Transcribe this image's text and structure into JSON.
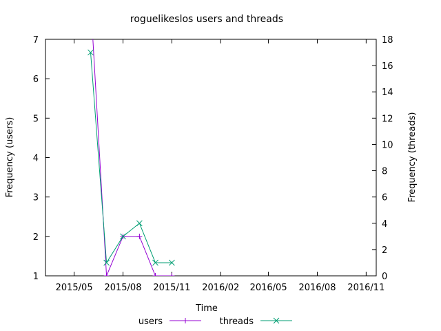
{
  "chart_data": {
    "type": "line",
    "title": "roguelikeslos users and threads",
    "xlabel": "Time",
    "ylabel_left": "Frequency (users)",
    "ylabel_right": "Frequency (threads)",
    "x_ticks": [
      "2015/05",
      "2015/08",
      "2015/11",
      "2016/02",
      "2016/05",
      "2016/08",
      "2016/11"
    ],
    "x_tick_dates": [
      "2015-05-01",
      "2015-08-01",
      "2015-11-01",
      "2016-02-01",
      "2016-05-01",
      "2016-08-01",
      "2016-11-01"
    ],
    "xlim": [
      "2015-03-08",
      "2016-11-20"
    ],
    "y_left_ticks": [
      1,
      2,
      3,
      4,
      5,
      6,
      7
    ],
    "y_left_lim": [
      1,
      7
    ],
    "y_right_ticks": [
      0,
      2,
      4,
      6,
      8,
      10,
      12,
      14,
      16,
      18
    ],
    "y_right_lim": [
      0,
      18
    ],
    "grid": false,
    "legend_position": "bottom",
    "series": [
      {
        "name": "users",
        "axis": "left",
        "color": "#9400d3",
        "marker": "plus",
        "x": [
          "2015-06-01",
          "2015-07-01",
          "2015-08-01",
          "2015-09-01",
          "2015-10-01",
          "2015-11-01"
        ],
        "y": [
          8,
          1,
          2,
          2,
          1,
          1
        ]
      },
      {
        "name": "threads",
        "axis": "right",
        "color": "#009e73",
        "marker": "cross",
        "x": [
          "2015-06-01",
          "2015-07-01",
          "2015-08-01",
          "2015-09-01",
          "2015-10-01",
          "2015-11-01"
        ],
        "y": [
          17,
          1,
          3,
          4,
          1,
          1
        ]
      }
    ]
  }
}
